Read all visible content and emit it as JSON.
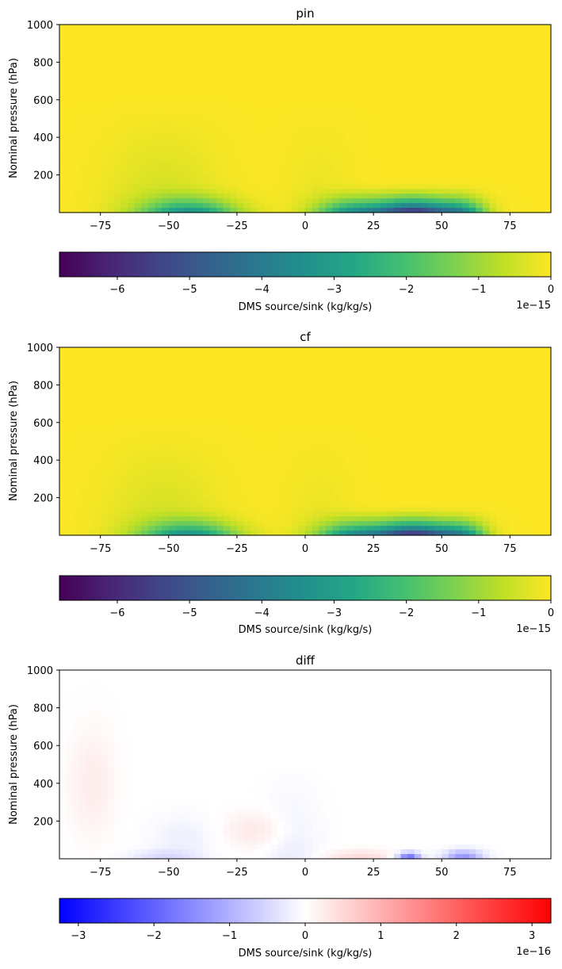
{
  "chart_data": [
    {
      "type": "heatmap",
      "title": "pin",
      "xlabel": "",
      "ylabel": "Nominal pressure (hPa)",
      "xlim": [
        -90,
        90
      ],
      "ylim": [
        1000,
        0
      ],
      "xticks": [
        -75,
        -50,
        -25,
        0,
        25,
        50,
        75
      ],
      "xtick_labels": [
        "−75",
        "−50",
        "−25",
        "0",
        "25",
        "50",
        "75"
      ],
      "yticks": [
        200,
        400,
        600,
        800,
        1000
      ],
      "ytick_labels": [
        "200",
        "400",
        "600",
        "800",
        "1000"
      ],
      "colormap": "viridis",
      "field": "dms_source_sink",
      "colorbar": {
        "label": "DMS source/sink (kg/kg/s)",
        "range": [
          -6.8,
          0
        ],
        "ticks": [
          -6,
          -5,
          -4,
          -3,
          -2,
          -1,
          0
        ],
        "tick_labels": [
          "−6",
          "−5",
          "−4",
          "−3",
          "−2",
          "−1",
          "0"
        ],
        "offset_label": "1e−15"
      }
    },
    {
      "type": "heatmap",
      "title": "cf",
      "xlabel": "",
      "ylabel": "Nominal pressure (hPa)",
      "xlim": [
        -90,
        90
      ],
      "ylim": [
        1000,
        0
      ],
      "xticks": [
        -75,
        -50,
        -25,
        0,
        25,
        50,
        75
      ],
      "xtick_labels": [
        "−75",
        "−50",
        "−25",
        "0",
        "25",
        "50",
        "75"
      ],
      "yticks": [
        200,
        400,
        600,
        800,
        1000
      ],
      "ytick_labels": [
        "200",
        "400",
        "600",
        "800",
        "1000"
      ],
      "colormap": "viridis",
      "field": "dms_source_sink",
      "colorbar": {
        "label": "DMS source/sink (kg/kg/s)",
        "range": [
          -6.8,
          0
        ],
        "ticks": [
          -6,
          -5,
          -4,
          -3,
          -2,
          -1,
          0
        ],
        "tick_labels": [
          "−6",
          "−5",
          "−4",
          "−3",
          "−2",
          "−1",
          "0"
        ],
        "offset_label": "1e−15"
      }
    },
    {
      "type": "heatmap",
      "title": "diff",
      "xlabel": "",
      "ylabel": "Nominal pressure (hPa)",
      "xlim": [
        -90,
        90
      ],
      "ylim": [
        1000,
        0
      ],
      "xticks": [
        -75,
        -50,
        -25,
        0,
        25,
        50,
        75
      ],
      "xtick_labels": [
        "−75",
        "−50",
        "−25",
        "0",
        "25",
        "50",
        "75"
      ],
      "yticks": [
        200,
        400,
        600,
        800,
        1000
      ],
      "ytick_labels": [
        "200",
        "400",
        "600",
        "800",
        "1000"
      ],
      "colormap": "bwr",
      "field": "dms_difference",
      "colorbar": {
        "label": "DMS source/sink (kg/kg/s)",
        "range": [
          -3.25,
          3.25
        ],
        "ticks": [
          -3,
          -2,
          -1,
          0,
          1,
          2,
          3
        ],
        "tick_labels": [
          "−3",
          "−2",
          "−1",
          "0",
          "1",
          "2",
          "3"
        ],
        "offset_label": "1e−16"
      }
    }
  ]
}
